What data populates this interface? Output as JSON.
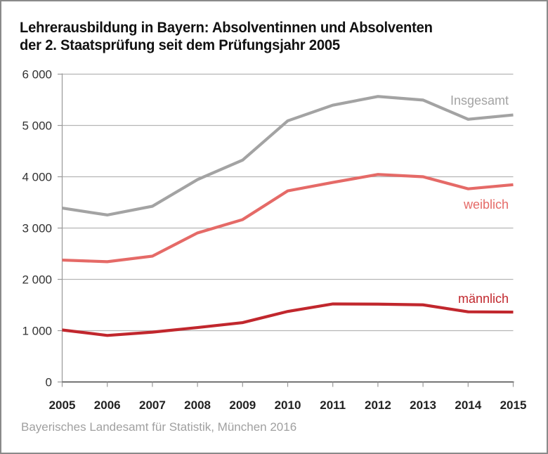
{
  "title": {
    "line1": "Lehrerausbildung in Bayern: Absolventinnen und Absolventen",
    "line2": "der 2. Staatsprüfung seit dem Prüfungsjahr 2005"
  },
  "source": "Bayerisches Landesamt für Statistik, München 2016",
  "chart_data": {
    "type": "line",
    "title": "Lehrerausbildung in Bayern: Absolventinnen und Absolventen der 2. Staatsprüfung seit dem Prüfungsjahr 2005",
    "xlabel": "",
    "ylabel": "",
    "x": [
      2005,
      2006,
      2007,
      2008,
      2009,
      2010,
      2011,
      2012,
      2013,
      2014,
      2015
    ],
    "x_tick_labels": [
      "2005",
      "2006",
      "2007",
      "2008",
      "2009",
      "2010",
      "2011",
      "2012",
      "2013",
      "2014",
      "2015"
    ],
    "ylim": [
      0,
      6000
    ],
    "y_ticks": [
      0,
      1000,
      2000,
      3000,
      4000,
      5000,
      6000
    ],
    "y_tick_labels": [
      "0",
      "1 000",
      "2 000",
      "3 000",
      "4 000",
      "5 000",
      "6 000"
    ],
    "grid": true,
    "legend": "direct-labels-right",
    "series": [
      {
        "name": "Insgesamt",
        "color": "#a3a3a3",
        "values": [
          3390,
          3255,
          3425,
          3945,
          4325,
          5090,
          5395,
          5565,
          5495,
          5120,
          5205
        ]
      },
      {
        "name": "weiblich",
        "color": "#e56a67",
        "values": [
          2376,
          2344,
          2453,
          2905,
          3165,
          3725,
          3890,
          4045,
          4000,
          3765,
          3845
        ]
      },
      {
        "name": "männlich",
        "color": "#c1272d",
        "values": [
          1014,
          907,
          971,
          1061,
          1157,
          1375,
          1521,
          1517,
          1503,
          1367,
          1362
        ]
      }
    ]
  }
}
